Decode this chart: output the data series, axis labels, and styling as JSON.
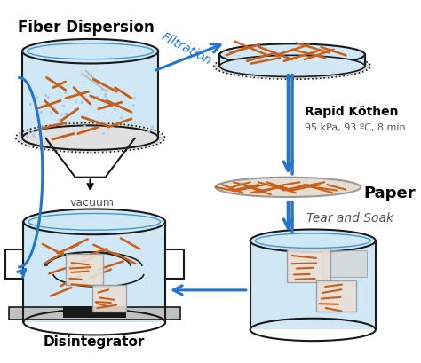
{
  "fiber_dispersion_label": "Fiber Dispersion",
  "filtration_label": "Filtration",
  "rapid_kothen_label": "Rapid Köthen",
  "rapid_kothen_sub": "95 kPa, 93 ºC, 8 min",
  "paper_label": "Paper",
  "tear_soak_label": "Tear and Soak",
  "disintegrator_label": "Disintegrator",
  "vacuum_label": "vacuum",
  "bg_color": "#ffffff",
  "fiber_color": "#c8601a",
  "water_color": "#d0e8f5",
  "container_line_color": "#1a1a1a",
  "arrow_color": "#2277cc",
  "gray_color": "#aaaaaa"
}
